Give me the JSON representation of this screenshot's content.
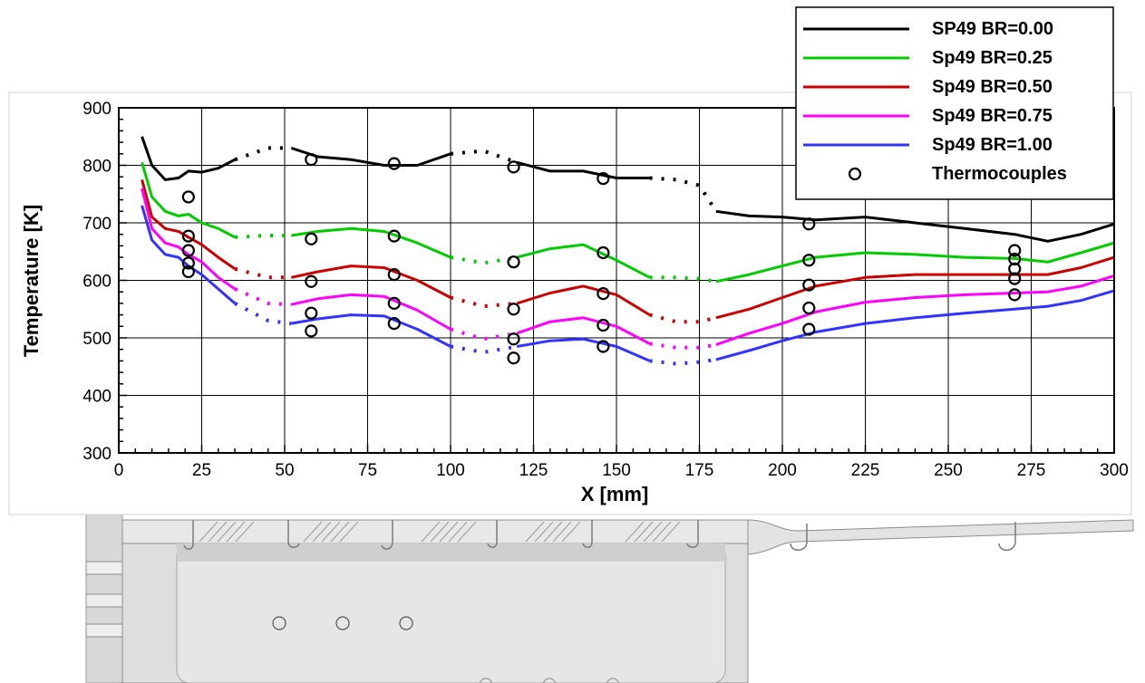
{
  "chart_data": {
    "type": "line",
    "xlabel": "X [mm]",
    "ylabel": "Temperature [K]",
    "xlim": [
      0,
      300
    ],
    "ylim": [
      300,
      900
    ],
    "xticks": [
      0,
      25,
      50,
      75,
      100,
      125,
      150,
      175,
      200,
      225,
      250,
      275,
      300
    ],
    "yticks": [
      300,
      400,
      500,
      600,
      700,
      800,
      900
    ],
    "grid": true,
    "legend_position": "top-right",
    "series": [
      {
        "name": "SP49 BR=0.00",
        "color": "#000000",
        "points": [
          [
            7,
            850
          ],
          [
            10,
            800
          ],
          [
            14,
            775
          ],
          [
            18,
            778
          ],
          [
            21,
            790
          ],
          [
            25,
            788
          ],
          [
            30,
            795
          ],
          [
            35,
            810
          ],
          [
            45,
            830
          ],
          [
            52,
            830
          ],
          [
            60,
            815
          ],
          [
            70,
            810
          ],
          [
            80,
            800
          ],
          [
            90,
            800
          ],
          [
            100,
            820
          ],
          [
            110,
            825
          ],
          [
            120,
            805
          ],
          [
            130,
            790
          ],
          [
            140,
            790
          ],
          [
            150,
            778
          ],
          [
            160,
            778
          ],
          [
            168,
            775
          ],
          [
            175,
            765
          ],
          [
            180,
            720
          ],
          [
            190,
            712
          ],
          [
            200,
            710
          ],
          [
            210,
            705
          ],
          [
            225,
            710
          ],
          [
            240,
            700
          ],
          [
            255,
            690
          ],
          [
            270,
            680
          ],
          [
            280,
            668
          ],
          [
            290,
            680
          ],
          [
            300,
            698
          ]
        ],
        "gaps": [
          [
            36,
            52
          ],
          [
            102,
            118
          ],
          [
            163,
            178
          ]
        ]
      },
      {
        "name": "Sp49 BR=0.25",
        "color": "#00cc00",
        "points": [
          [
            7,
            805
          ],
          [
            10,
            745
          ],
          [
            14,
            720
          ],
          [
            18,
            712
          ],
          [
            21,
            715
          ],
          [
            25,
            700
          ],
          [
            30,
            690
          ],
          [
            35,
            675
          ],
          [
            45,
            678
          ],
          [
            52,
            678
          ],
          [
            60,
            685
          ],
          [
            70,
            690
          ],
          [
            80,
            685
          ],
          [
            90,
            665
          ],
          [
            100,
            640
          ],
          [
            110,
            630
          ],
          [
            120,
            640
          ],
          [
            130,
            655
          ],
          [
            140,
            662
          ],
          [
            150,
            635
          ],
          [
            160,
            605
          ],
          [
            168,
            605
          ],
          [
            175,
            603
          ],
          [
            180,
            598
          ],
          [
            190,
            610
          ],
          [
            200,
            625
          ],
          [
            210,
            640
          ],
          [
            225,
            648
          ],
          [
            240,
            645
          ],
          [
            255,
            640
          ],
          [
            270,
            638
          ],
          [
            280,
            632
          ],
          [
            290,
            648
          ],
          [
            300,
            665
          ]
        ],
        "gaps": [
          [
            36,
            52
          ],
          [
            102,
            118
          ],
          [
            163,
            178
          ]
        ]
      },
      {
        "name": "Sp49 BR=0.50",
        "color": "#cc0000",
        "points": [
          [
            7,
            775
          ],
          [
            10,
            710
          ],
          [
            14,
            690
          ],
          [
            18,
            685
          ],
          [
            21,
            675
          ],
          [
            25,
            662
          ],
          [
            30,
            640
          ],
          [
            35,
            620
          ],
          [
            45,
            605
          ],
          [
            52,
            605
          ],
          [
            60,
            615
          ],
          [
            70,
            625
          ],
          [
            80,
            622
          ],
          [
            90,
            600
          ],
          [
            100,
            570
          ],
          [
            110,
            555
          ],
          [
            120,
            560
          ],
          [
            130,
            578
          ],
          [
            140,
            590
          ],
          [
            150,
            575
          ],
          [
            160,
            540
          ],
          [
            168,
            528
          ],
          [
            175,
            528
          ],
          [
            180,
            535
          ],
          [
            190,
            550
          ],
          [
            200,
            570
          ],
          [
            210,
            590
          ],
          [
            225,
            605
          ],
          [
            240,
            610
          ],
          [
            255,
            610
          ],
          [
            270,
            610
          ],
          [
            280,
            610
          ],
          [
            290,
            622
          ],
          [
            300,
            640
          ]
        ],
        "gaps": [
          [
            36,
            52
          ],
          [
            102,
            118
          ],
          [
            163,
            178
          ]
        ]
      },
      {
        "name": "Sp49 BR=0.75",
        "color": "#ff00ff",
        "points": [
          [
            7,
            760
          ],
          [
            10,
            690
          ],
          [
            14,
            665
          ],
          [
            18,
            658
          ],
          [
            21,
            645
          ],
          [
            25,
            632
          ],
          [
            30,
            605
          ],
          [
            35,
            585
          ],
          [
            45,
            560
          ],
          [
            52,
            558
          ],
          [
            60,
            568
          ],
          [
            70,
            575
          ],
          [
            80,
            572
          ],
          [
            90,
            548
          ],
          [
            100,
            515
          ],
          [
            110,
            498
          ],
          [
            120,
            508
          ],
          [
            130,
            528
          ],
          [
            140,
            535
          ],
          [
            150,
            520
          ],
          [
            160,
            490
          ],
          [
            168,
            483
          ],
          [
            175,
            483
          ],
          [
            180,
            488
          ],
          [
            190,
            508
          ],
          [
            200,
            525
          ],
          [
            210,
            545
          ],
          [
            225,
            562
          ],
          [
            240,
            570
          ],
          [
            255,
            575
          ],
          [
            270,
            578
          ],
          [
            280,
            580
          ],
          [
            290,
            590
          ],
          [
            300,
            608
          ]
        ],
        "gaps": [
          [
            36,
            52
          ],
          [
            102,
            118
          ],
          [
            163,
            178
          ]
        ]
      },
      {
        "name": "Sp49 BR=1.00",
        "color": "#3333ff",
        "points": [
          [
            7,
            730
          ],
          [
            10,
            670
          ],
          [
            14,
            645
          ],
          [
            18,
            640
          ],
          [
            21,
            625
          ],
          [
            25,
            610
          ],
          [
            30,
            585
          ],
          [
            35,
            560
          ],
          [
            45,
            530
          ],
          [
            52,
            525
          ],
          [
            60,
            533
          ],
          [
            70,
            540
          ],
          [
            80,
            538
          ],
          [
            90,
            515
          ],
          [
            100,
            485
          ],
          [
            110,
            475
          ],
          [
            120,
            485
          ],
          [
            130,
            495
          ],
          [
            140,
            498
          ],
          [
            150,
            485
          ],
          [
            160,
            460
          ],
          [
            168,
            455
          ],
          [
            175,
            458
          ],
          [
            180,
            462
          ],
          [
            190,
            478
          ],
          [
            200,
            495
          ],
          [
            210,
            510
          ],
          [
            225,
            525
          ],
          [
            240,
            535
          ],
          [
            255,
            543
          ],
          [
            270,
            550
          ],
          [
            280,
            555
          ],
          [
            290,
            565
          ],
          [
            300,
            582
          ]
        ],
        "gaps": [
          [
            36,
            52
          ],
          [
            102,
            118
          ],
          [
            163,
            178
          ]
        ]
      },
      {
        "name": "Thermocouples",
        "type": "scatter",
        "marker": "circle",
        "color": "#000000",
        "points": [
          [
            21,
            745
          ],
          [
            21,
            677
          ],
          [
            21,
            652
          ],
          [
            21,
            630
          ],
          [
            21,
            615
          ],
          [
            58,
            810
          ],
          [
            58,
            672
          ],
          [
            58,
            598
          ],
          [
            58,
            543
          ],
          [
            58,
            512
          ],
          [
            83,
            803
          ],
          [
            83,
            677
          ],
          [
            83,
            610
          ],
          [
            83,
            560
          ],
          [
            83,
            525
          ],
          [
            119,
            797
          ],
          [
            119,
            632
          ],
          [
            119,
            550
          ],
          [
            119,
            498
          ],
          [
            119,
            465
          ],
          [
            146,
            777
          ],
          [
            146,
            648
          ],
          [
            146,
            577
          ],
          [
            146,
            522
          ],
          [
            146,
            485
          ],
          [
            208,
            698
          ],
          [
            208,
            635
          ],
          [
            208,
            592
          ],
          [
            208,
            552
          ],
          [
            208,
            515
          ],
          [
            270,
            652
          ],
          [
            270,
            637
          ],
          [
            270,
            620
          ],
          [
            270,
            603
          ],
          [
            270,
            575
          ]
        ]
      }
    ]
  },
  "diagram_holes": {
    "row1_count": 3,
    "row2_count": 3
  }
}
